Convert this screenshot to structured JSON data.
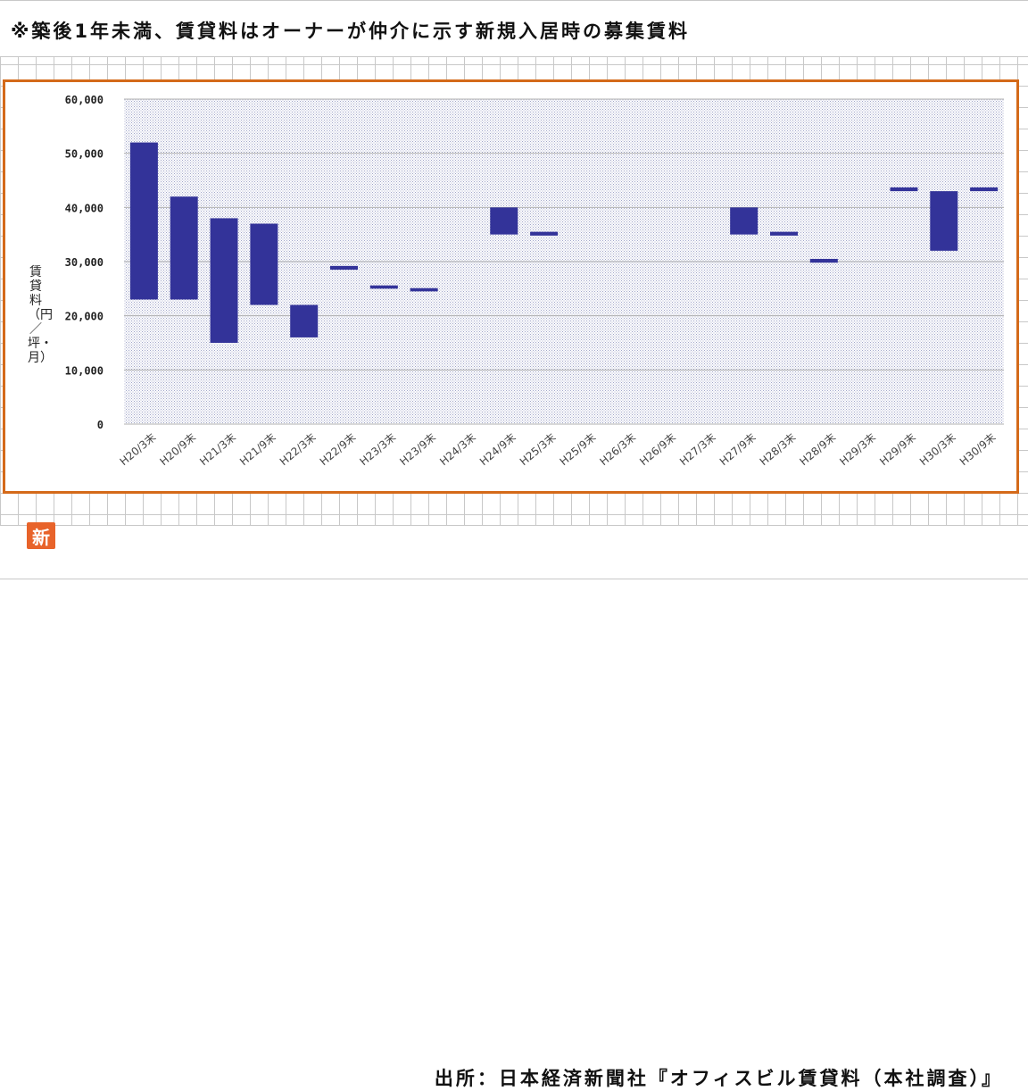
{
  "header": {
    "note": "※築後1年未満、賃貸料はオーナーが仲介に示す新規入居時の募集賃料"
  },
  "footer": {
    "source": "出所：日本経済新聞社『オフィスビル賃貸料（本社調査）』"
  },
  "badge": {
    "icon": "new-kanji-icon",
    "label": "新"
  },
  "colors": {
    "bar": "#333399",
    "frame": "#d46a1a",
    "plot_dots": "#9fa4c8",
    "badge": "#e8632a"
  },
  "chart_data": {
    "type": "bar",
    "subtype": "floating-range",
    "categories": [
      "H20/3末",
      "H20/9末",
      "H21/3末",
      "H21/9末",
      "H22/3末",
      "H22/9末",
      "H23/3末",
      "H23/9末",
      "H24/3末",
      "H24/9末",
      "H25/3末",
      "H25/9末",
      "H26/3末",
      "H26/9末",
      "H27/3末",
      "H27/9末",
      "H28/3末",
      "H28/9末",
      "H29/3末",
      "H29/9末",
      "H30/3末",
      "H30/9末"
    ],
    "series": [
      {
        "ranges": [
          [
            23000,
            52000
          ],
          [
            23000,
            42000
          ],
          [
            15000,
            38000
          ],
          [
            22000,
            37000
          ],
          [
            16000,
            22000
          ],
          [
            28500,
            29200
          ],
          [
            25000,
            25600
          ],
          [
            24500,
            25100
          ],
          null,
          [
            35000,
            40000
          ],
          [
            34800,
            35500
          ],
          null,
          null,
          null,
          null,
          [
            35000,
            40000
          ],
          [
            34800,
            35500
          ],
          [
            29800,
            30500
          ],
          null,
          [
            43000,
            43700
          ],
          [
            32000,
            43000
          ],
          [
            43000,
            43700
          ]
        ]
      }
    ],
    "xlabel": "",
    "ylabel": "賃貸料（円／坪・月）",
    "ylim": [
      0,
      60000
    ],
    "yticks": [
      0,
      10000,
      20000,
      30000,
      40000,
      50000,
      60000
    ],
    "ytick_labels": [
      "0",
      "10,000",
      "20,000",
      "30,000",
      "40,000",
      "50,000",
      "60,000"
    ],
    "grid": true,
    "legend": "none"
  }
}
